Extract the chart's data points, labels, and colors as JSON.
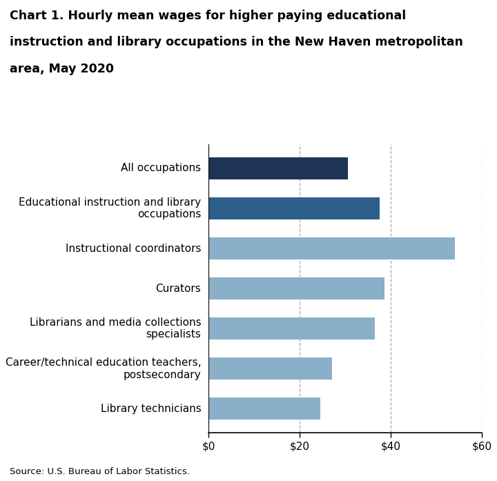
{
  "title_line1": "Chart 1. Hourly mean wages for higher paying educational",
  "title_line2": "instruction and library occupations in the New Haven metropolitan",
  "title_line3": "area, May 2020",
  "categories": [
    "Library technicians",
    "Career/technical education teachers,\npostsecondary",
    "Librarians and media collections\nspecialists",
    "Curators",
    "Instructional coordinators",
    "Educational instruction and library\noccupations",
    "All occupations"
  ],
  "values": [
    24.5,
    27.0,
    36.5,
    38.5,
    54.0,
    37.5,
    30.5
  ],
  "bar_colors": [
    "#8aafc8",
    "#8aafc8",
    "#8aafc8",
    "#8aafc8",
    "#8aafc8",
    "#2e5f8a",
    "#1d3456"
  ],
  "xlim": [
    0,
    60
  ],
  "xticks": [
    0,
    20,
    40,
    60
  ],
  "xticklabels": [
    "$0",
    "$20",
    "$40",
    "$60"
  ],
  "grid_color": "#aaaaaa",
  "source_text": "Source: U.S. Bureau of Labor Statistics.",
  "background_color": "#ffffff",
  "title_fontsize": 12.5,
  "tick_fontsize": 11,
  "label_fontsize": 11
}
